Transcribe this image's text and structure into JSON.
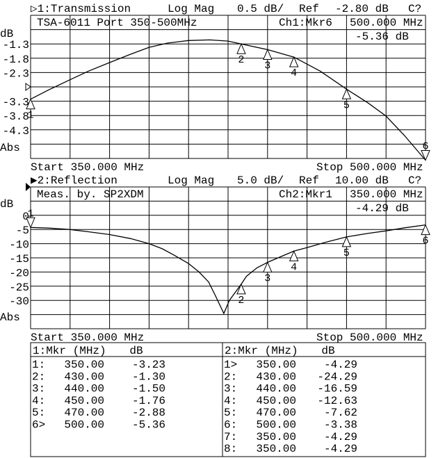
{
  "chart_data": [
    {
      "type": "line",
      "channel_label": "▷1:Transmission",
      "format": "Log Mag",
      "scale": "0.5 dB/",
      "ref_label": "Ref",
      "ref_value": "-2.80 dB",
      "status": "C?",
      "title": "TSA-6011 Port 350-500MHz",
      "active_marker_label": "Ch1:Mkr6",
      "active_marker_freq": "500.000 MHz",
      "active_marker_value": "-5.36 dB",
      "ylabel": "dB",
      "ylabel_bottom": "Abs",
      "ytick_labels": [
        "-1.3",
        "-1.8",
        "-2.3",
        "-3.3",
        "-3.8",
        "-4.3"
      ],
      "ytick_values": [
        -1.3,
        -1.8,
        -2.3,
        -3.3,
        -3.8,
        -4.3
      ],
      "ylim": [
        -5.3,
        -0.3
      ],
      "xlim": [
        350,
        500
      ],
      "ref_level": -2.8,
      "start_label": "Start 350.000 MHz",
      "stop_label": "Stop 500.000 MHz",
      "grid": true,
      "x": [
        350,
        357,
        364.8,
        372,
        380,
        388,
        395,
        402,
        410,
        418,
        425,
        430,
        440,
        450,
        460,
        470,
        478,
        485,
        492,
        500
      ],
      "y": [
        -3.23,
        -2.9,
        -2.56,
        -2.25,
        -1.95,
        -1.66,
        -1.42,
        -1.27,
        -1.18,
        -1.16,
        -1.2,
        -1.3,
        -1.5,
        -1.76,
        -2.25,
        -2.88,
        -3.35,
        -3.82,
        -4.5,
        -5.36
      ],
      "markers": [
        {
          "n": "1",
          "f": 350,
          "v": -3.23,
          "active": false
        },
        {
          "n": "2",
          "f": 430,
          "v": -1.3,
          "active": false
        },
        {
          "n": "3",
          "f": 440,
          "v": -1.5,
          "active": false
        },
        {
          "n": "4",
          "f": 450,
          "v": -1.76,
          "active": false
        },
        {
          "n": "5",
          "f": 470,
          "v": -2.88,
          "active": false
        },
        {
          "n": "6",
          "f": 500,
          "v": -5.36,
          "active": true
        }
      ]
    },
    {
      "type": "line",
      "channel_label": "▶2:Reflection",
      "format": "Log Mag",
      "scale": "5.0 dB/",
      "ref_label": "Ref",
      "ref_value": "10.00 dB",
      "status": "C?",
      "title": "Meas. by. SP2XDM",
      "active_marker_label": "Ch2:Mkr1",
      "active_marker_freq": "350.000 MHz",
      "active_marker_value": "-4.29 dB",
      "ylabel": "dB",
      "ylabel_bottom": "Abs",
      "ytick_labels": [
        "0",
        "-5",
        "-10",
        "-15",
        "-20",
        "-25",
        "-30"
      ],
      "ytick_values": [
        0,
        -5,
        -10,
        -15,
        -20,
        -25,
        -30
      ],
      "ylim": [
        -40,
        10
      ],
      "xlim": [
        350,
        500
      ],
      "ref_level": 10,
      "start_label": "Start 350.000 MHz",
      "stop_label": "Stop 500.000 MHz",
      "grid": true,
      "x": [
        350,
        357,
        364.8,
        372,
        380,
        388,
        395,
        400,
        404.4,
        410,
        414,
        417.6,
        420,
        423.4,
        425.5,
        430,
        432,
        436,
        440,
        444,
        450,
        455,
        462,
        470,
        478,
        485,
        492,
        500
      ],
      "y": [
        -4.29,
        -4.5,
        -5,
        -5.8,
        -6.8,
        -8.2,
        -10,
        -11.8,
        -14,
        -17,
        -20,
        -23.5,
        -28,
        -34.6,
        -30,
        -24.29,
        -21.5,
        -18.5,
        -16.59,
        -15,
        -12.63,
        -11.4,
        -9.5,
        -7.62,
        -6.4,
        -5.5,
        -4.4,
        -3.38
      ],
      "markers": [
        {
          "n": "1",
          "f": 350,
          "v": -4.29,
          "active": true
        },
        {
          "n": "2",
          "f": 430,
          "v": -24.29,
          "active": false
        },
        {
          "n": "3",
          "f": 440,
          "v": -16.59,
          "active": false
        },
        {
          "n": "4",
          "f": 450,
          "v": -12.63,
          "active": false
        },
        {
          "n": "5",
          "f": 470,
          "v": -7.62,
          "active": false
        },
        {
          "n": "6",
          "f": 500,
          "v": -3.38,
          "active": false
        }
      ]
    }
  ],
  "marker_tables": [
    {
      "header_mkr": "1:Mkr (MHz)",
      "header_db": "dB",
      "rows": [
        {
          "id": "1:",
          "freq": "350.00",
          "db": "-3.23"
        },
        {
          "id": "2:",
          "freq": "430.00",
          "db": "-1.30"
        },
        {
          "id": "3:",
          "freq": "440.00",
          "db": "-1.50"
        },
        {
          "id": "4:",
          "freq": "450.00",
          "db": "-1.76"
        },
        {
          "id": "5:",
          "freq": "470.00",
          "db": "-2.88"
        },
        {
          "id": "6>",
          "freq": "500.00",
          "db": "-5.36"
        }
      ]
    },
    {
      "header_mkr": "2:Mkr (MHz)",
      "header_db": "dB",
      "rows": [
        {
          "id": "1>",
          "freq": "350.00",
          "db": "-4.29"
        },
        {
          "id": "2:",
          "freq": "430.00",
          "db": "-24.29"
        },
        {
          "id": "3:",
          "freq": "440.00",
          "db": "-16.59"
        },
        {
          "id": "4:",
          "freq": "450.00",
          "db": "-12.63"
        },
        {
          "id": "5:",
          "freq": "470.00",
          "db": "-7.62"
        },
        {
          "id": "6:",
          "freq": "500.00",
          "db": "-3.38"
        },
        {
          "id": "7:",
          "freq": "350.00",
          "db": "-4.29"
        },
        {
          "id": "8:",
          "freq": "350.00",
          "db": "-4.29"
        }
      ]
    }
  ]
}
